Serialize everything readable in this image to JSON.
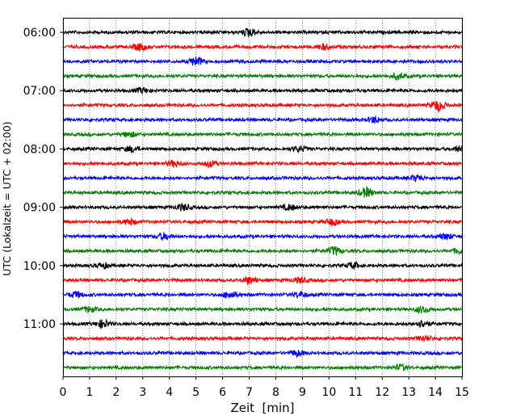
{
  "chart_data": {
    "type": "line",
    "title": "",
    "xlabel": "Zeit  [min]",
    "ylabel": "UTC (Lokalzeit = UTC + 02:00)",
    "xlim": [
      0,
      15
    ],
    "x_ticks": [
      "0",
      "1",
      "2",
      "3",
      "4",
      "5",
      "6",
      "7",
      "8",
      "9",
      "10",
      "11",
      "12",
      "13",
      "14",
      "15"
    ],
    "y_ticks": [
      "06:00",
      "07:00",
      "08:00",
      "09:00",
      "10:00",
      "11:00"
    ],
    "grid": "vertical dotted lines at each minute",
    "legend": "none",
    "trace_interval_min": 15,
    "trace_colors": [
      "#000000",
      "#ff0000",
      "#0000ff",
      "#008000"
    ],
    "traces": [
      {
        "start": "06:00",
        "events": [
          [
            7.0,
            2.6
          ]
        ]
      },
      {
        "start": "06:15",
        "events": [
          [
            2.9,
            2.2
          ],
          [
            9.8,
            1.6
          ]
        ]
      },
      {
        "start": "06:30",
        "events": [
          [
            5.0,
            2.8
          ]
        ]
      },
      {
        "start": "06:45",
        "events": [
          [
            12.6,
            1.8
          ]
        ]
      },
      {
        "start": "07:00",
        "events": [
          [
            3.0,
            1.6
          ]
        ]
      },
      {
        "start": "07:15",
        "events": [
          [
            14.1,
            3.4
          ]
        ]
      },
      {
        "start": "07:30",
        "events": [
          [
            11.7,
            1.8
          ]
        ]
      },
      {
        "start": "07:45",
        "events": [
          [
            2.5,
            1.6
          ]
        ]
      },
      {
        "start": "08:00",
        "events": [
          [
            2.6,
            1.8
          ],
          [
            8.9,
            1.6
          ],
          [
            14.9,
            1.6
          ]
        ]
      },
      {
        "start": "08:15",
        "events": [
          [
            4.2,
            1.8
          ],
          [
            5.5,
            1.8
          ]
        ]
      },
      {
        "start": "08:30",
        "events": [
          [
            13.3,
            1.8
          ]
        ]
      },
      {
        "start": "08:45",
        "events": [
          [
            11.4,
            3.0
          ]
        ]
      },
      {
        "start": "09:00",
        "events": [
          [
            4.5,
            2.0
          ],
          [
            8.5,
            1.6
          ]
        ]
      },
      {
        "start": "09:15",
        "events": [
          [
            2.5,
            1.6
          ],
          [
            10.1,
            1.9
          ]
        ]
      },
      {
        "start": "09:30",
        "events": [
          [
            3.8,
            2.0
          ],
          [
            14.4,
            1.8
          ]
        ]
      },
      {
        "start": "09:45",
        "events": [
          [
            10.2,
            2.6
          ],
          [
            14.9,
            1.6
          ]
        ]
      },
      {
        "start": "10:00",
        "events": [
          [
            1.5,
            1.6
          ],
          [
            10.9,
            1.8
          ]
        ]
      },
      {
        "start": "10:15",
        "events": [
          [
            7.0,
            2.2
          ],
          [
            8.9,
            1.6
          ]
        ]
      },
      {
        "start": "10:30",
        "events": [
          [
            0.5,
            1.8
          ],
          [
            6.3,
            2.2
          ],
          [
            8.9,
            1.6
          ]
        ]
      },
      {
        "start": "10:45",
        "events": [
          [
            1.0,
            1.6
          ],
          [
            13.5,
            2.0
          ]
        ]
      },
      {
        "start": "11:00",
        "events": [
          [
            1.5,
            2.4
          ],
          [
            13.5,
            2.0
          ]
        ]
      },
      {
        "start": "11:15",
        "events": [
          [
            13.6,
            1.6
          ]
        ]
      },
      {
        "start": "11:30",
        "events": [
          [
            8.8,
            1.8
          ]
        ]
      },
      {
        "start": "11:45",
        "events": [
          [
            12.7,
            1.6
          ]
        ]
      }
    ]
  }
}
